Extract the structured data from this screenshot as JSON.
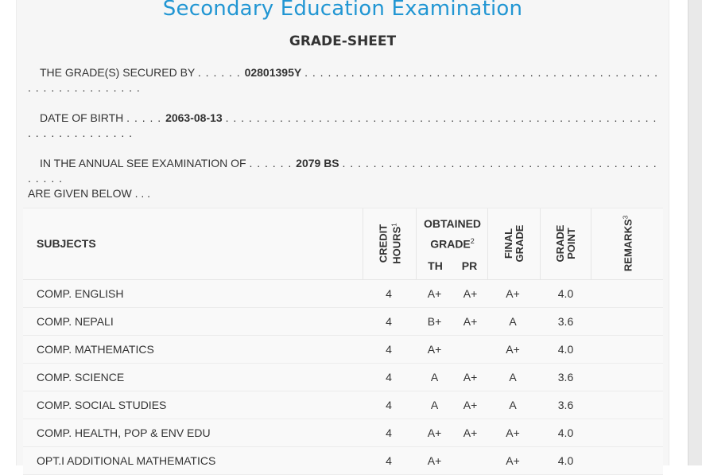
{
  "header": {
    "exam_title": "Secondary Education Examination",
    "sheet_title": "GRADE-SHEET"
  },
  "info": {
    "secured_label": "THE GRADE(S) SECURED BY",
    "symbol_number": "02801395Y",
    "dob_label": "DATE OF BIRTH",
    "dob": "2063-08-13",
    "exam_label": "IN THE ANNUAL SEE EXAMINATION OF",
    "exam_year": "2079 BS",
    "given_below": "ARE GIVEN BELOW . . ."
  },
  "table": {
    "headers": {
      "subjects": "SUBJECTS",
      "credit_hours": "CREDIT\nHOURS",
      "credit_sup": "1",
      "obtained_grade_line1": "OBTAINED",
      "obtained_grade_line2": "GRADE",
      "obtained_sup": "2",
      "th": "TH",
      "pr": "PR",
      "final_grade": "FINAL\nGRADE",
      "grade_point": "GRADE\nPOINT",
      "remarks": "REMARKS",
      "remarks_sup": "3"
    },
    "rows": [
      {
        "subject": "COMP. ENGLISH",
        "credit": "4",
        "th": "A+",
        "pr": "A+",
        "final": "A+",
        "gp": "4.0"
      },
      {
        "subject": "COMP. NEPALI",
        "credit": "4",
        "th": "B+",
        "pr": "A+",
        "final": "A",
        "gp": "3.6"
      },
      {
        "subject": "COMP. MATHEMATICS",
        "credit": "4",
        "th": "A+",
        "pr": "",
        "final": "A+",
        "gp": "4.0"
      },
      {
        "subject": "COMP. SCIENCE",
        "credit": "4",
        "th": "A",
        "pr": "A+",
        "final": "A",
        "gp": "3.6"
      },
      {
        "subject": "COMP. SOCIAL STUDIES",
        "credit": "4",
        "th": "A",
        "pr": "A+",
        "final": "A",
        "gp": "3.6"
      },
      {
        "subject": "COMP. HEALTH, POP & ENV EDU",
        "credit": "4",
        "th": "A+",
        "pr": "A+",
        "final": "A+",
        "gp": "4.0"
      },
      {
        "subject": "OPT.I ADDITIONAL MATHEMATICS",
        "credit": "4",
        "th": "A+",
        "pr": "",
        "final": "A+",
        "gp": "4.0"
      }
    ]
  }
}
